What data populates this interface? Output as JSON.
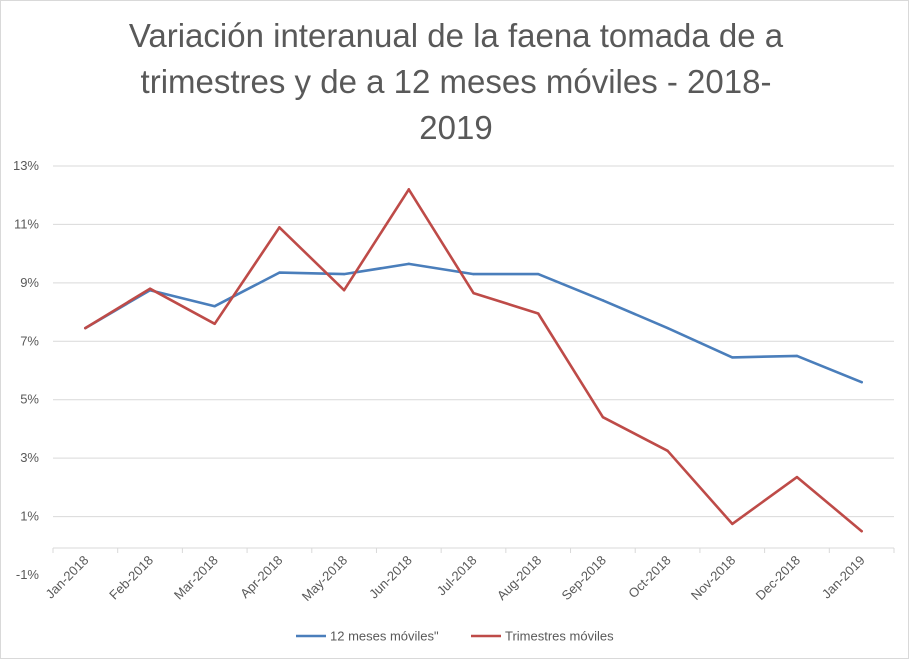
{
  "chart_data": {
    "type": "line",
    "title_lines": [
      "Variación interanual de la faena tomada de a",
      "trimestres y de a 12 meses móviles - 2018-",
      "2019"
    ],
    "categories": [
      "Jan-2018",
      "Feb-2018",
      "Mar-2018",
      "Apr-2018",
      "May-2018",
      "Jun-2018",
      "Jul-2018",
      "Aug-2018",
      "Sep-2018",
      "Oct-2018",
      "Nov-2018",
      "Dec-2018",
      "Jan-2019"
    ],
    "y_ticks": [
      -1,
      1,
      3,
      5,
      7,
      9,
      11,
      13
    ],
    "y_tick_labels": [
      "-1%",
      "1%",
      "3%",
      "5%",
      "7%",
      "9%",
      "11%",
      "13%"
    ],
    "ylim": [
      -1,
      13
    ],
    "xlabel": "",
    "ylabel": "",
    "grid": true,
    "legend_position": "bottom",
    "series": [
      {
        "name": "12 meses móviles\"",
        "color": "#4a7ebb",
        "values": [
          7.45,
          8.75,
          8.2,
          9.35,
          9.3,
          9.65,
          9.3,
          9.3,
          8.4,
          7.45,
          6.45,
          6.5,
          5.6
        ]
      },
      {
        "name": "Trimestres móviles",
        "color": "#be4b48",
        "values": [
          7.45,
          8.8,
          7.6,
          10.9,
          8.75,
          12.2,
          8.65,
          7.95,
          4.4,
          3.25,
          0.75,
          2.35,
          0.5
        ]
      }
    ]
  }
}
